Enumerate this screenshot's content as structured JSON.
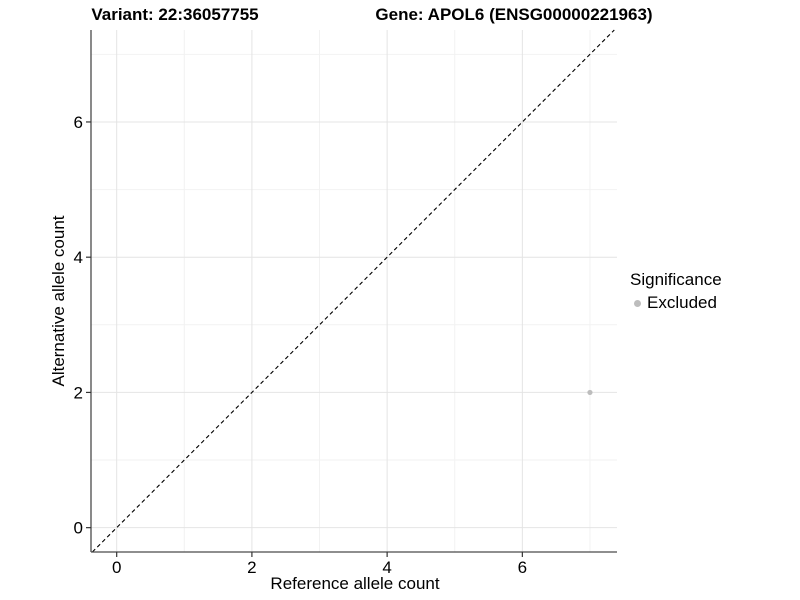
{
  "chart_data": {
    "type": "scatter",
    "titles": {
      "left": "Variant: 22:36057755",
      "right": "Gene: APOL6 (ENSG00000221963)"
    },
    "xlabel": "Reference allele count",
    "ylabel": "Alternative allele count",
    "xlim": [
      -0.38,
      7.4
    ],
    "ylim": [
      -0.36,
      7.36
    ],
    "x_ticks": {
      "major": [
        0,
        2,
        4,
        6
      ],
      "minor": [
        1,
        3,
        5,
        7
      ]
    },
    "y_ticks": {
      "major": [
        0,
        2,
        4,
        6
      ],
      "minor": [
        1,
        3,
        5,
        7
      ]
    },
    "points": [
      {
        "x": 7,
        "y": 2,
        "significance": "Excluded"
      }
    ],
    "identity_line": {
      "style": "dashed",
      "slope": 1,
      "intercept": 0
    },
    "legend": {
      "title": "Significance",
      "items": [
        {
          "label": "Excluded",
          "color": "#bdbdbd"
        }
      ]
    },
    "grid": true,
    "colors": {
      "excluded_point": "#bdbdbd",
      "grid_major": "#e4e4e4",
      "grid_minor": "#f2f2f2",
      "axis_line": "#4a4a4a",
      "tick_mark": "#333333",
      "dashed_line": "#000000",
      "text": "#000000"
    }
  }
}
